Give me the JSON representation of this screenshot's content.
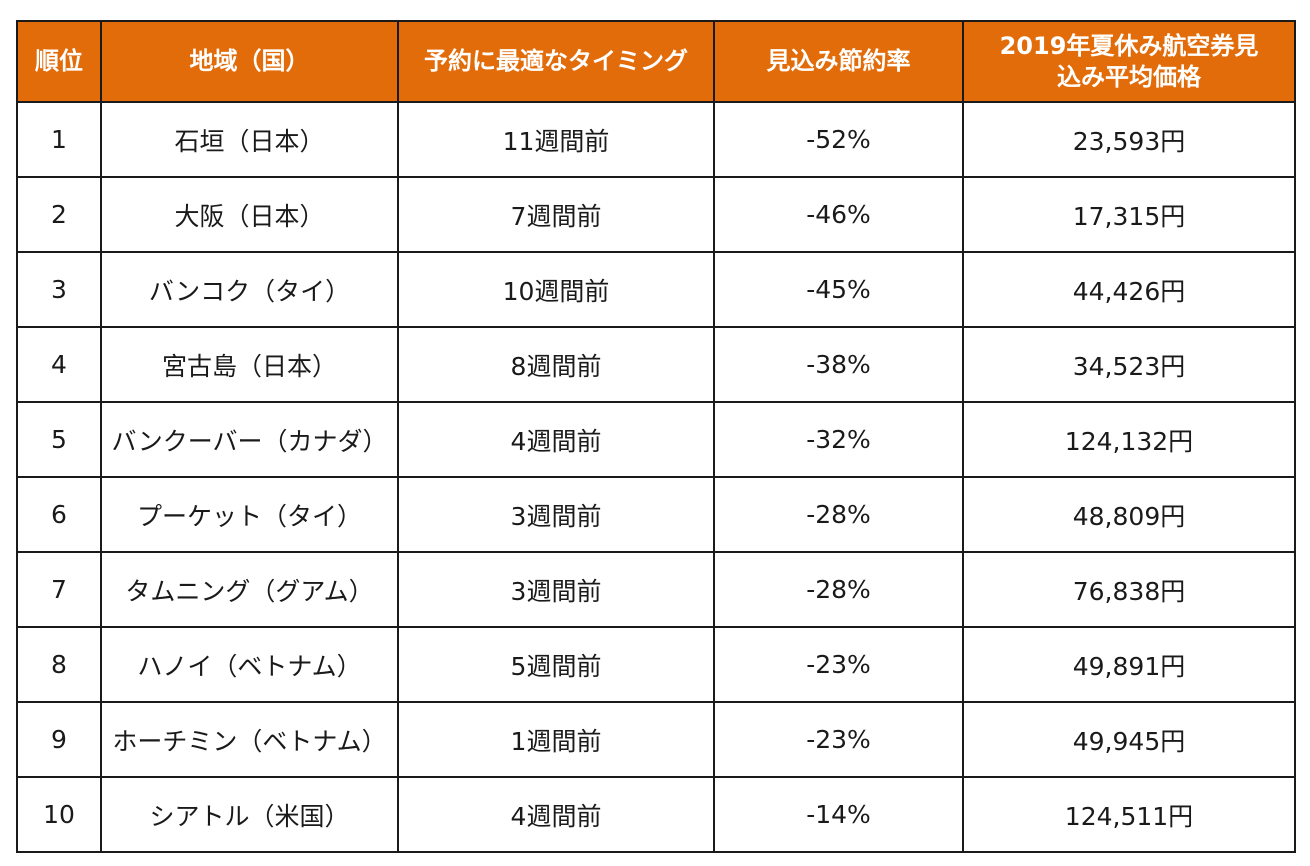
{
  "colors": {
    "header_bg": "#e36c0a",
    "header_text": "#ffffff",
    "border": "#1a1a1a",
    "body_text": "#1a1a1a"
  },
  "header": {
    "rank": "順位",
    "region": "地域（国）",
    "timing": "予約に最適なタイミング",
    "saving": "見込み節約率",
    "price_line1": "2019年夏休み航空券見",
    "price_line2": "込み平均価格"
  },
  "rows": [
    {
      "rank": "1",
      "region": "石垣（日本）",
      "timing": "11週間前",
      "saving": "-52%",
      "price": "23,593円"
    },
    {
      "rank": "2",
      "region": "大阪（日本）",
      "timing": "7週間前",
      "saving": "-46%",
      "price": "17,315円"
    },
    {
      "rank": "3",
      "region": "バンコク（タイ）",
      "timing": "10週間前",
      "saving": "-45%",
      "price": "44,426円"
    },
    {
      "rank": "4",
      "region": "宮古島（日本）",
      "timing": "8週間前",
      "saving": "-38%",
      "price": "34,523円"
    },
    {
      "rank": "5",
      "region": "バンクーバー（カナダ）",
      "timing": "4週間前",
      "saving": "-32%",
      "price": "124,132円"
    },
    {
      "rank": "6",
      "region": "プーケット（タイ）",
      "timing": "3週間前",
      "saving": "-28%",
      "price": "48,809円"
    },
    {
      "rank": "7",
      "region": "タムニング（グアム）",
      "timing": "3週間前",
      "saving": "-28%",
      "price": "76,838円"
    },
    {
      "rank": "8",
      "region": "ハノイ（ベトナム）",
      "timing": "5週間前",
      "saving": "-23%",
      "price": "49,891円"
    },
    {
      "rank": "9",
      "region": "ホーチミン（ベトナム）",
      "timing": "1週間前",
      "saving": "-23%",
      "price": "49,945円"
    },
    {
      "rank": "10",
      "region": "シアトル（米国）",
      "timing": "4週間前",
      "saving": "-14%",
      "price": "124,511円"
    }
  ]
}
